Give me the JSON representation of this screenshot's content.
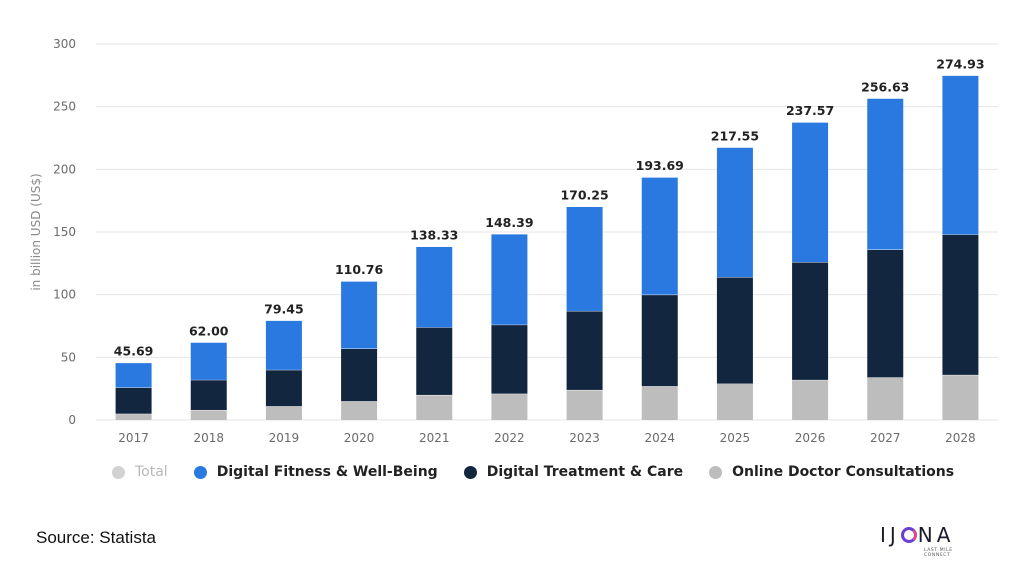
{
  "chart_data": {
    "type": "bar",
    "stacked": true,
    "categories": [
      "2017",
      "2018",
      "2019",
      "2020",
      "2021",
      "2022",
      "2023",
      "2024",
      "2025",
      "2026",
      "2027",
      "2028"
    ],
    "ylabel": "in billion USD (US$)",
    "ylim": [
      0,
      300
    ],
    "yticks": [
      0,
      50,
      100,
      150,
      200,
      250,
      300
    ],
    "grid": true,
    "legend_placement": "bottom",
    "totals": [
      "45.69",
      "62.00",
      "79.45",
      "110.76",
      "138.33",
      "148.39",
      "170.25",
      "193.69",
      "217.55",
      "237.57",
      "256.63",
      "274.93"
    ],
    "series": [
      {
        "name": "Online Doctor Consultations",
        "color": "#bdbdbd",
        "values": [
          5,
          8,
          11,
          15,
          20,
          21,
          24,
          27,
          29,
          32,
          34,
          36
        ]
      },
      {
        "name": "Digital Treatment & Care",
        "color": "#13263f",
        "values": [
          21,
          24,
          29,
          42,
          54,
          55,
          63,
          73,
          85,
          94,
          102,
          112
        ]
      },
      {
        "name": "Digital Fitness & Well-Being",
        "color": "#2a79e0",
        "values": [
          19.69,
          30,
          39.45,
          53.76,
          64.33,
          72.39,
          83.25,
          93.69,
          103.55,
          111.57,
          120.63,
          126.93
        ]
      }
    ]
  },
  "legend": {
    "items": [
      {
        "label": "Total",
        "color": "#d2d2d2",
        "muted": true
      },
      {
        "label": "Digital Fitness & Well-Being",
        "color": "#2a79e0",
        "muted": false
      },
      {
        "label": "Digital Treatment & Care",
        "color": "#13263f",
        "muted": false
      },
      {
        "label": "Online Doctor Consultations",
        "color": "#bdbdbd",
        "muted": false
      }
    ]
  },
  "footer": {
    "source": "Source: Statista",
    "logo_left": "IJ",
    "logo_right": "NA",
    "logo_tagline": "LAST MILE CONNECT"
  }
}
